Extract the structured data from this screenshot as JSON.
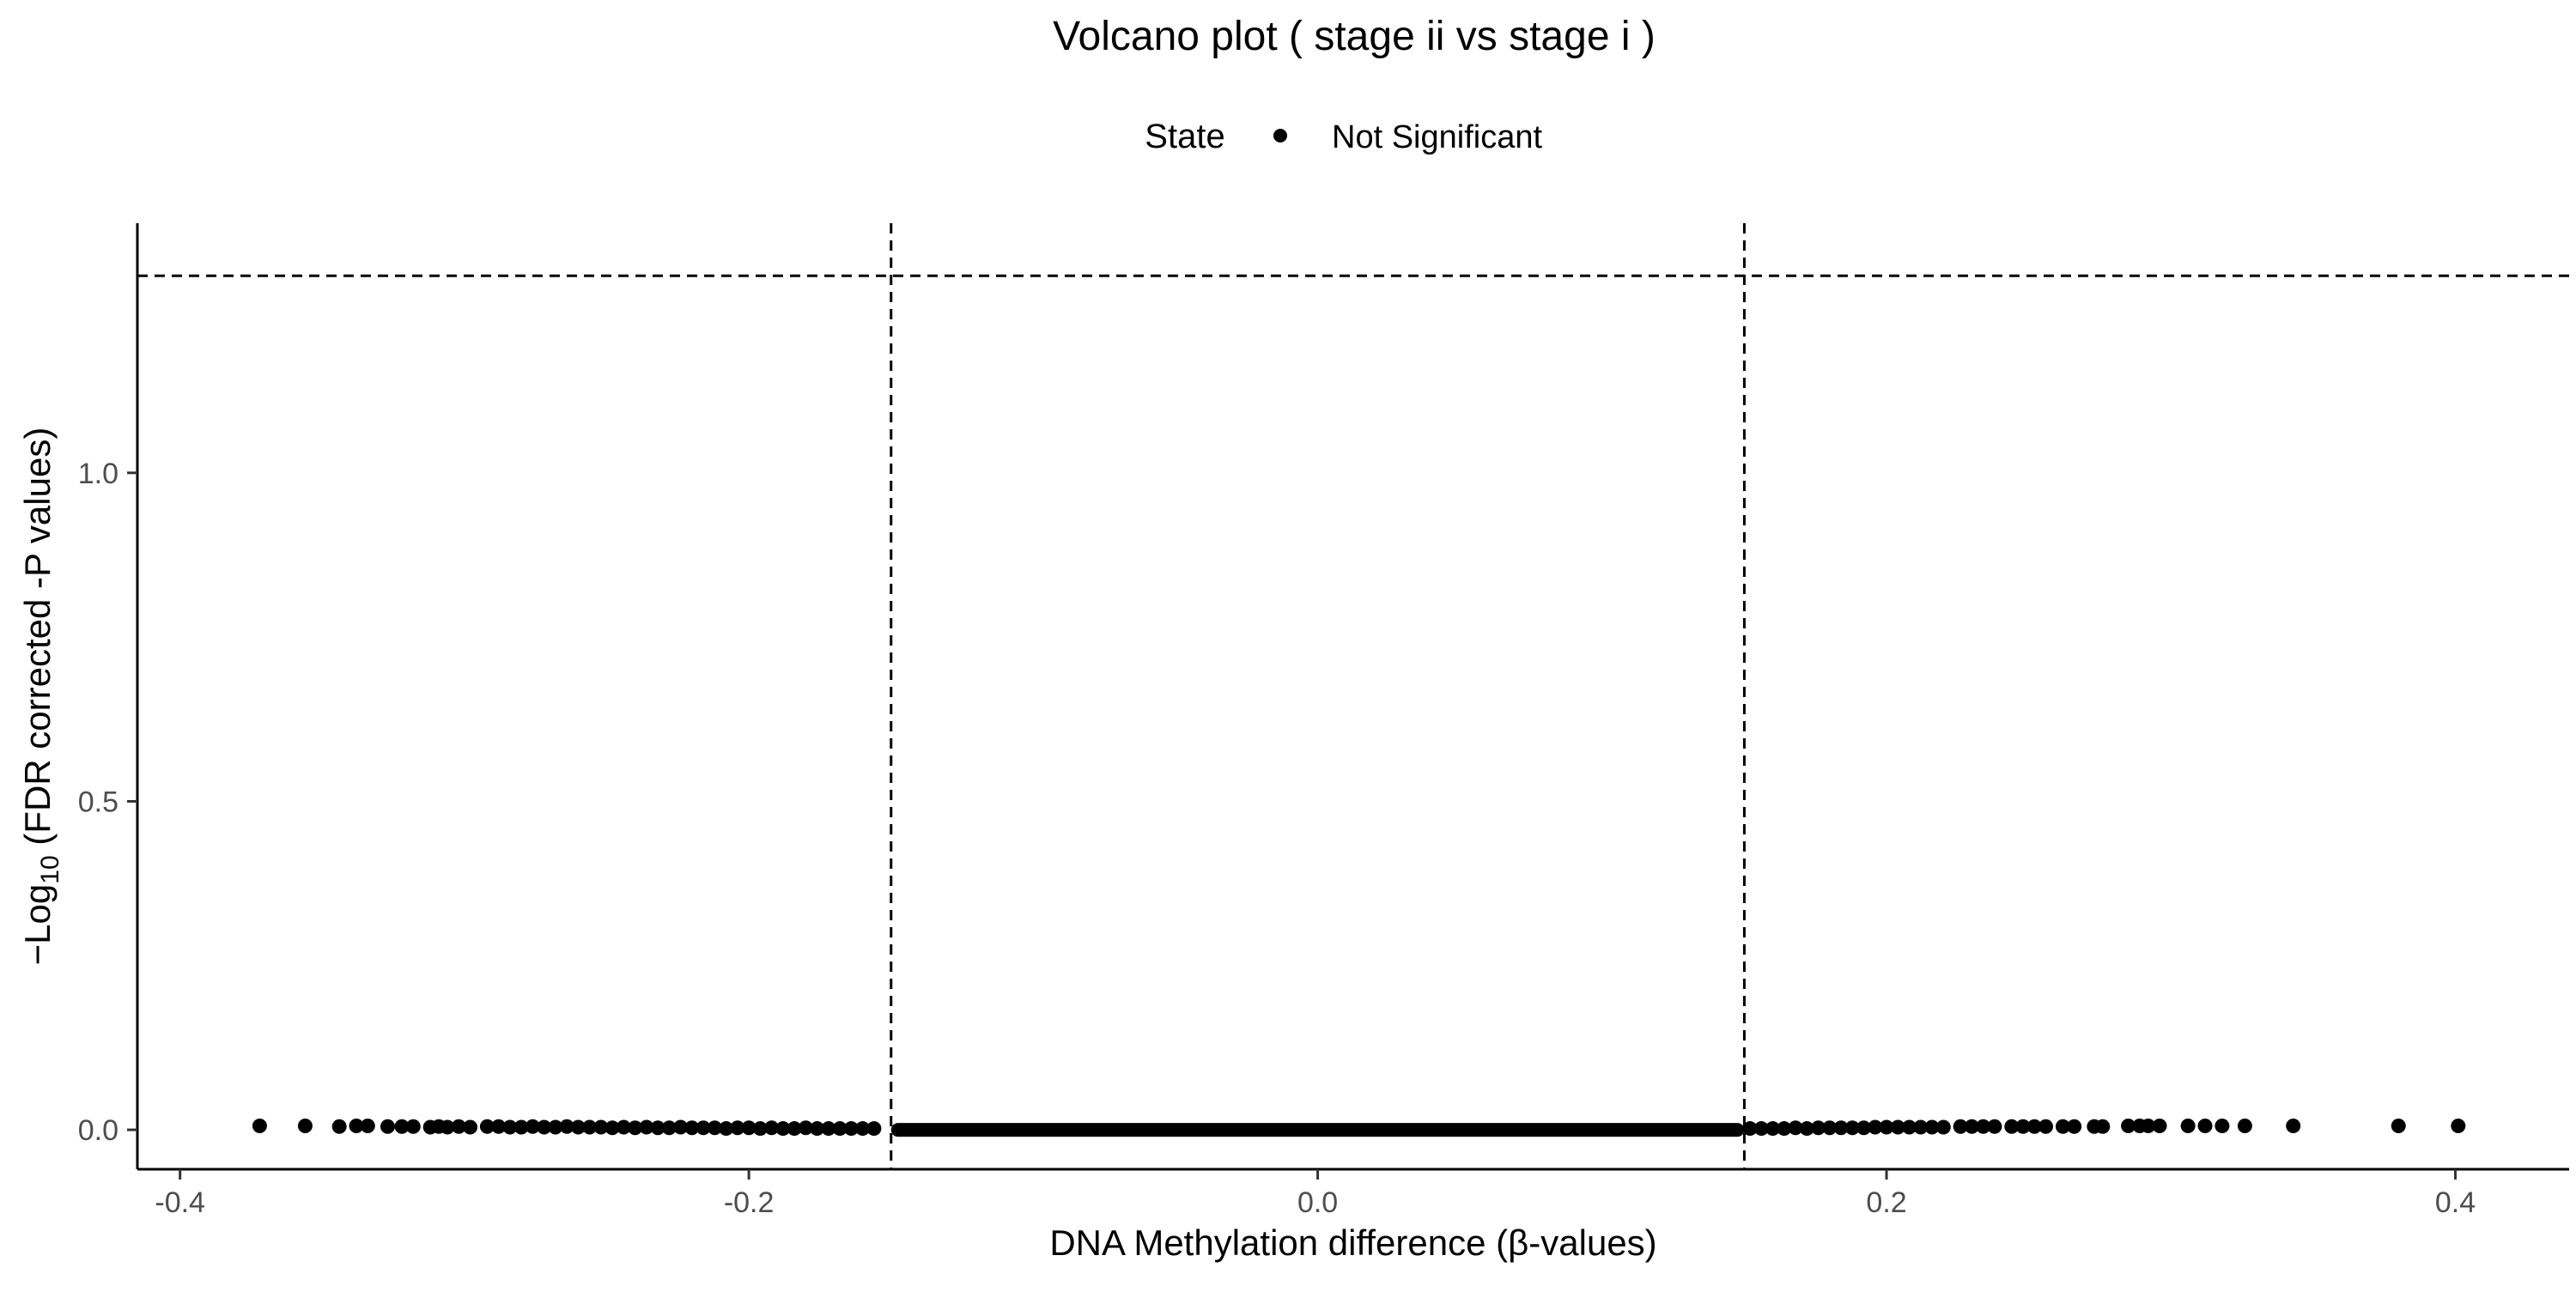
{
  "chart_data": {
    "type": "scatter",
    "title": "Volcano plot ( stage ii vs stage i )",
    "xlabel": "DNA Methylation difference (β-values)",
    "ylabel": {
      "prefix": "−Log",
      "subscript": "10",
      "suffix": " (FDR corrected -P values)"
    },
    "legend": {
      "title": "State",
      "placement": "top",
      "entries": [
        {
          "label": "Not Significant",
          "color": "#000000"
        }
      ]
    },
    "xlim": [
      -0.415,
      0.44
    ],
    "ylim": [
      -0.06,
      1.38
    ],
    "x_ticks": [
      -0.4,
      -0.2,
      0.0,
      0.2,
      0.4
    ],
    "x_tick_labels": [
      "-0.4",
      "-0.2",
      "0.0",
      "0.2",
      "0.4"
    ],
    "y_ticks": [
      0.0,
      0.5,
      1.0
    ],
    "y_tick_labels": [
      "0.0",
      "0.5",
      "1.0"
    ],
    "reference_lines": {
      "vertical": [
        -0.15,
        0.15
      ],
      "horizontal": [
        1.3
      ],
      "style": "dashed"
    },
    "grid": false,
    "series": [
      {
        "name": "Not Significant",
        "color": "#000000",
        "dense_band": {
          "x_range": [
            -0.15,
            0.15
          ],
          "y": 0.0
        },
        "points": [
          {
            "x": -0.372,
            "y": 0.006
          },
          {
            "x": -0.356,
            "y": 0.006
          },
          {
            "x": -0.344,
            "y": 0.005
          },
          {
            "x": -0.338,
            "y": 0.006
          },
          {
            "x": -0.334,
            "y": 0.006
          },
          {
            "x": -0.327,
            "y": 0.005
          },
          {
            "x": -0.322,
            "y": 0.005
          },
          {
            "x": -0.318,
            "y": 0.005
          },
          {
            "x": -0.312,
            "y": 0.004
          },
          {
            "x": -0.309,
            "y": 0.005
          },
          {
            "x": -0.306,
            "y": 0.004
          },
          {
            "x": -0.302,
            "y": 0.005
          },
          {
            "x": -0.298,
            "y": 0.004
          },
          {
            "x": -0.292,
            "y": 0.005
          },
          {
            "x": -0.288,
            "y": 0.005
          },
          {
            "x": -0.284,
            "y": 0.004
          },
          {
            "x": -0.28,
            "y": 0.004
          },
          {
            "x": -0.276,
            "y": 0.005
          },
          {
            "x": -0.272,
            "y": 0.004
          },
          {
            "x": -0.268,
            "y": 0.004
          },
          {
            "x": -0.264,
            "y": 0.005
          },
          {
            "x": -0.26,
            "y": 0.004
          },
          {
            "x": -0.256,
            "y": 0.004
          },
          {
            "x": -0.252,
            "y": 0.004
          },
          {
            "x": -0.248,
            "y": 0.003
          },
          {
            "x": -0.244,
            "y": 0.004
          },
          {
            "x": -0.24,
            "y": 0.003
          },
          {
            "x": -0.236,
            "y": 0.004
          },
          {
            "x": -0.232,
            "y": 0.003
          },
          {
            "x": -0.228,
            "y": 0.003
          },
          {
            "x": -0.224,
            "y": 0.004
          },
          {
            "x": -0.22,
            "y": 0.003
          },
          {
            "x": -0.216,
            "y": 0.003
          },
          {
            "x": -0.212,
            "y": 0.003
          },
          {
            "x": -0.208,
            "y": 0.002
          },
          {
            "x": -0.204,
            "y": 0.003
          },
          {
            "x": -0.2,
            "y": 0.003
          },
          {
            "x": -0.196,
            "y": 0.002
          },
          {
            "x": -0.192,
            "y": 0.003
          },
          {
            "x": -0.188,
            "y": 0.002
          },
          {
            "x": -0.184,
            "y": 0.002
          },
          {
            "x": -0.18,
            "y": 0.003
          },
          {
            "x": -0.176,
            "y": 0.002
          },
          {
            "x": -0.172,
            "y": 0.002
          },
          {
            "x": -0.168,
            "y": 0.002
          },
          {
            "x": -0.164,
            "y": 0.002
          },
          {
            "x": -0.16,
            "y": 0.002
          },
          {
            "x": -0.156,
            "y": 0.002
          },
          {
            "x": 0.152,
            "y": 0.002
          },
          {
            "x": 0.156,
            "y": 0.002
          },
          {
            "x": 0.16,
            "y": 0.002
          },
          {
            "x": 0.164,
            "y": 0.002
          },
          {
            "x": 0.168,
            "y": 0.003
          },
          {
            "x": 0.172,
            "y": 0.002
          },
          {
            "x": 0.176,
            "y": 0.003
          },
          {
            "x": 0.18,
            "y": 0.003
          },
          {
            "x": 0.184,
            "y": 0.003
          },
          {
            "x": 0.188,
            "y": 0.003
          },
          {
            "x": 0.192,
            "y": 0.003
          },
          {
            "x": 0.196,
            "y": 0.004
          },
          {
            "x": 0.2,
            "y": 0.004
          },
          {
            "x": 0.204,
            "y": 0.004
          },
          {
            "x": 0.208,
            "y": 0.004
          },
          {
            "x": 0.212,
            "y": 0.004
          },
          {
            "x": 0.216,
            "y": 0.004
          },
          {
            "x": 0.22,
            "y": 0.004
          },
          {
            "x": 0.226,
            "y": 0.005
          },
          {
            "x": 0.23,
            "y": 0.005
          },
          {
            "x": 0.234,
            "y": 0.005
          },
          {
            "x": 0.238,
            "y": 0.005
          },
          {
            "x": 0.244,
            "y": 0.005
          },
          {
            "x": 0.248,
            "y": 0.005
          },
          {
            "x": 0.252,
            "y": 0.005
          },
          {
            "x": 0.256,
            "y": 0.005
          },
          {
            "x": 0.262,
            "y": 0.005
          },
          {
            "x": 0.266,
            "y": 0.005
          },
          {
            "x": 0.273,
            "y": 0.005
          },
          {
            "x": 0.276,
            "y": 0.005
          },
          {
            "x": 0.285,
            "y": 0.006
          },
          {
            "x": 0.289,
            "y": 0.006
          },
          {
            "x": 0.292,
            "y": 0.006
          },
          {
            "x": 0.296,
            "y": 0.006
          },
          {
            "x": 0.306,
            "y": 0.006
          },
          {
            "x": 0.312,
            "y": 0.006
          },
          {
            "x": 0.318,
            "y": 0.006
          },
          {
            "x": 0.326,
            "y": 0.006
          },
          {
            "x": 0.343,
            "y": 0.006
          },
          {
            "x": 0.38,
            "y": 0.006
          },
          {
            "x": 0.401,
            "y": 0.006
          }
        ]
      }
    ]
  }
}
